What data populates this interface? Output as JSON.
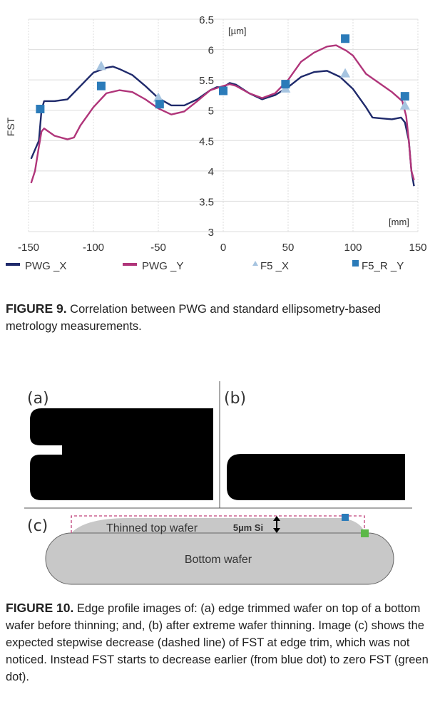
{
  "figure9": {
    "caption_label": "FIGURE 9.",
    "caption_text": "Correlation between PWG and standard ellipsometry-based metrology measurements."
  },
  "figure10": {
    "caption_label": "FIGURE 10.",
    "caption_text": "Edge profile images of: (a) edge trimmed wafer on top of a bottom wafer before thinning; and, (b) after extreme wafer thinning. Image (c) shows the expected stepwise decrease (dashed line) of FST at edge trim, which was not noticed. Instead FST starts to decrease earlier (from blue dot) to zero FST (green dot).",
    "panel_a": "(a)",
    "panel_b": "(b)",
    "panel_c": "(c)",
    "thinned_label": "Thinned top wafer",
    "si_label": "5µm Si",
    "bottom_label": "Bottom wafer",
    "colors": {
      "dashed": "#c0407a",
      "blue_dot": "#2b7bb9",
      "green_dot": "#5cb848",
      "wafer": "#c8c8c8"
    }
  },
  "chart_data": {
    "type": "line",
    "title": "",
    "xlabel": "[mm]",
    "ylabel": "FST",
    "yunit": "[µm]",
    "xlim": [
      -150,
      150
    ],
    "ylim": [
      3,
      6.5
    ],
    "xticks": [
      "-150",
      "-100",
      "-50",
      "0",
      "50",
      "100",
      "150"
    ],
    "yticks": [
      "3",
      "3.5",
      "4",
      "4.5",
      "5",
      "5.5",
      "6",
      "6.5"
    ],
    "grid": true,
    "legend": "bottom",
    "series": [
      {
        "name": "PWG _X",
        "kind": "line",
        "color": "#1f2a6b",
        "x": [
          -148,
          -145,
          -142,
          -140,
          -138,
          -130,
          -120,
          -110,
          -100,
          -90,
          -85,
          -80,
          -70,
          -60,
          -50,
          -40,
          -30,
          -20,
          -10,
          -5,
          0,
          5,
          10,
          20,
          30,
          40,
          50,
          60,
          70,
          80,
          90,
          100,
          110,
          115,
          120,
          130,
          137,
          140,
          143,
          145,
          147
        ],
        "y": [
          4.2,
          4.35,
          4.5,
          5.0,
          5.15,
          5.15,
          5.18,
          5.4,
          5.62,
          5.7,
          5.72,
          5.68,
          5.58,
          5.4,
          5.2,
          5.08,
          5.08,
          5.18,
          5.33,
          5.38,
          5.38,
          5.45,
          5.42,
          5.28,
          5.18,
          5.25,
          5.38,
          5.55,
          5.63,
          5.65,
          5.55,
          5.35,
          5.05,
          4.88,
          4.87,
          4.85,
          4.88,
          4.8,
          4.5,
          4.0,
          3.75
        ]
      },
      {
        "name": "PWG _Y",
        "kind": "line",
        "color": "#b0357a",
        "x": [
          -148,
          -145,
          -142,
          -140,
          -138,
          -130,
          -120,
          -115,
          -110,
          -100,
          -90,
          -80,
          -70,
          -60,
          -50,
          -40,
          -30,
          -20,
          -10,
          0,
          5,
          10,
          20,
          30,
          40,
          50,
          60,
          70,
          80,
          87,
          95,
          100,
          110,
          120,
          130,
          138,
          141,
          143,
          145,
          147
        ],
        "y": [
          3.8,
          4.0,
          4.4,
          4.65,
          4.7,
          4.58,
          4.52,
          4.55,
          4.75,
          5.05,
          5.28,
          5.33,
          5.3,
          5.18,
          5.03,
          4.93,
          4.98,
          5.15,
          5.33,
          5.4,
          5.43,
          5.4,
          5.28,
          5.2,
          5.28,
          5.5,
          5.8,
          5.95,
          6.05,
          6.07,
          5.98,
          5.9,
          5.6,
          5.45,
          5.3,
          5.15,
          4.9,
          4.5,
          4.0,
          3.85
        ]
      },
      {
        "name": "F5 _X",
        "kind": "triangle",
        "color": "#a6c4e0",
        "x": [
          -94,
          -50,
          48,
          94,
          140
        ],
        "y": [
          5.72,
          5.2,
          5.35,
          5.6,
          5.07
        ]
      },
      {
        "name": "F5_R _Y",
        "kind": "square",
        "color": "#2b7bb9",
        "x": [
          -141,
          -94,
          -49,
          0,
          48,
          94,
          140
        ],
        "y": [
          5.02,
          5.4,
          5.1,
          5.32,
          5.43,
          6.18,
          5.23
        ]
      }
    ]
  }
}
